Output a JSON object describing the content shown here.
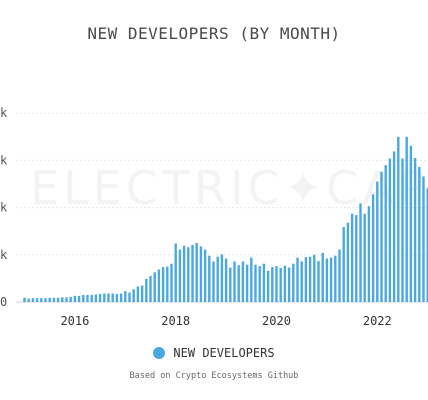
{
  "chart_data": {
    "type": "bar",
    "title": "NEW DEVELOPERS (BY MONTH)",
    "xlabel": "",
    "ylabel": "",
    "x_tick_labels": [
      "2016",
      "2018",
      "2020",
      "2022"
    ],
    "y_tick_labels": [
      "k",
      "k",
      "k",
      "k",
      "0"
    ],
    "ylim": [
      0,
      5
    ],
    "grid": true,
    "legend_position": "bottom",
    "series": [
      {
        "name": "NEW DEVELOPERS",
        "color": "#4aa8e0",
        "x": [
          "2015-01",
          "2015-02",
          "2015-03",
          "2015-04",
          "2015-05",
          "2015-06",
          "2015-07",
          "2015-08",
          "2015-09",
          "2015-10",
          "2015-11",
          "2015-12",
          "2016-01",
          "2016-02",
          "2016-03",
          "2016-04",
          "2016-05",
          "2016-06",
          "2016-07",
          "2016-08",
          "2016-09",
          "2016-10",
          "2016-11",
          "2016-12",
          "2017-01",
          "2017-02",
          "2017-03",
          "2017-04",
          "2017-05",
          "2017-06",
          "2017-07",
          "2017-08",
          "2017-09",
          "2017-10",
          "2017-11",
          "2017-12",
          "2018-01",
          "2018-02",
          "2018-03",
          "2018-04",
          "2018-05",
          "2018-06",
          "2018-07",
          "2018-08",
          "2018-09",
          "2018-10",
          "2018-11",
          "2018-12",
          "2019-01",
          "2019-02",
          "2019-03",
          "2019-04",
          "2019-05",
          "2019-06",
          "2019-07",
          "2019-08",
          "2019-09",
          "2019-10",
          "2019-11",
          "2019-12",
          "2020-01",
          "2020-02",
          "2020-03",
          "2020-04",
          "2020-05",
          "2020-06",
          "2020-07",
          "2020-08",
          "2020-09",
          "2020-10",
          "2020-11",
          "2020-12",
          "2021-01",
          "2021-02",
          "2021-03",
          "2021-04",
          "2021-05",
          "2021-06",
          "2021-07",
          "2021-08",
          "2021-09",
          "2021-10",
          "2021-11",
          "2021-12",
          "2022-01",
          "2022-02",
          "2022-03",
          "2022-04",
          "2022-05",
          "2022-06",
          "2022-07",
          "2022-08",
          "2022-09",
          "2022-10",
          "2022-11",
          "2022-12",
          "2023-01",
          "2023-02"
        ],
        "values": [
          0.09,
          0.07,
          0.08,
          0.08,
          0.08,
          0.08,
          0.09,
          0.09,
          0.09,
          0.1,
          0.1,
          0.11,
          0.13,
          0.13,
          0.15,
          0.15,
          0.15,
          0.16,
          0.17,
          0.18,
          0.18,
          0.18,
          0.17,
          0.18,
          0.23,
          0.2,
          0.27,
          0.33,
          0.35,
          0.49,
          0.55,
          0.63,
          0.69,
          0.74,
          0.75,
          0.81,
          1.24,
          1.11,
          1.19,
          1.16,
          1.21,
          1.25,
          1.18,
          1.11,
          0.98,
          0.86,
          0.96,
          1.01,
          0.92,
          0.73,
          0.86,
          0.78,
          0.86,
          0.79,
          0.94,
          0.79,
          0.76,
          0.81,
          0.66,
          0.74,
          0.76,
          0.72,
          0.77,
          0.73,
          0.81,
          0.94,
          0.86,
          0.95,
          0.96,
          1.0,
          0.87,
          1.04,
          0.92,
          0.94,
          0.98,
          1.11,
          1.59,
          1.68,
          1.87,
          1.84,
          2.09,
          1.87,
          2.03,
          2.28,
          2.55,
          2.76,
          2.9,
          3.04,
          3.19,
          3.5,
          3.04,
          3.5,
          3.31,
          3.05,
          2.86,
          2.66,
          2.41,
          2.06
        ]
      }
    ]
  },
  "watermark": {
    "text": "ELECTRIC✦CAPITAL"
  },
  "legend": {
    "label": "NEW DEVELOPERS",
    "color": "#4aa8e0"
  },
  "footer": {
    "source_note": "Based on Crypto Ecosystems Github"
  }
}
